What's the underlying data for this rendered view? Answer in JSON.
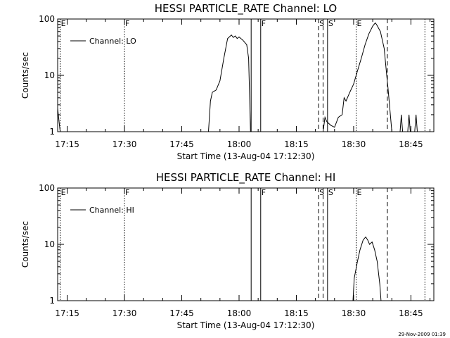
{
  "footer": {
    "timestamp": "29-Nov-2009 01:39"
  },
  "chart_data": [
    {
      "type": "line",
      "title": "HESSI PARTICLE_RATE Channel: LO",
      "xlabel": "Start Time (13-Aug-04 17:12:30)",
      "ylabel": "Counts/sec",
      "yscale": "log",
      "ylim": [
        1,
        100
      ],
      "xlim": [
        "17:12:30",
        "18:51:00"
      ],
      "x_ticks": [
        "17:15",
        "17:30",
        "17:45",
        "18:00",
        "18:15",
        "18:30",
        "18:45"
      ],
      "y_ticks": [
        "1",
        "10",
        "100"
      ],
      "legend": {
        "position": "top-left",
        "entries": [
          "Channel: LO"
        ]
      },
      "series": [
        {
          "name": "Channel: LO",
          "points": [
            [
              "17:12:30",
              2.6
            ],
            [
              "17:12:50",
              1.6
            ],
            [
              "17:13:10",
              1.0
            ],
            [
              "17:52:00",
              1.0
            ],
            [
              "17:52:30",
              3.5
            ],
            [
              "17:53:00",
              5.0
            ],
            [
              "17:54:00",
              5.5
            ],
            [
              "17:55:00",
              8.0
            ],
            [
              "17:56:00",
              20.0
            ],
            [
              "17:57:00",
              45.0
            ],
            [
              "17:58:00",
              52.0
            ],
            [
              "17:58:30",
              47.0
            ],
            [
              "17:59:00",
              50.0
            ],
            [
              "17:59:30",
              45.0
            ],
            [
              "18:00:00",
              48.0
            ],
            [
              "18:01:00",
              42.0
            ],
            [
              "18:02:00",
              35.0
            ],
            [
              "18:02:30",
              20.0
            ],
            [
              "18:03:00",
              1.0
            ],
            [
              "18:22:00",
              1.0
            ],
            [
              "18:22:30",
              1.8
            ],
            [
              "18:23:00",
              1.5
            ],
            [
              "18:24:00",
              1.3
            ],
            [
              "18:25:00",
              1.2
            ],
            [
              "18:26:00",
              1.8
            ],
            [
              "18:27:00",
              2.0
            ],
            [
              "18:27:30",
              4.0
            ],
            [
              "18:28:00",
              3.5
            ],
            [
              "18:29:00",
              5.0
            ],
            [
              "18:30:00",
              7.0
            ],
            [
              "18:31:00",
              12.0
            ],
            [
              "18:32:00",
              20.0
            ],
            [
              "18:33:00",
              35.0
            ],
            [
              "18:34:00",
              55.0
            ],
            [
              "18:35:00",
              75.0
            ],
            [
              "18:35:40",
              85.0
            ],
            [
              "18:36:00",
              80.0
            ],
            [
              "18:37:00",
              60.0
            ],
            [
              "18:38:00",
              30.0
            ],
            [
              "18:38:40",
              10.0
            ],
            [
              "18:39:00",
              6.0
            ],
            [
              "18:40:00",
              1.0
            ],
            [
              "18:42:10",
              1.0
            ],
            [
              "18:42:30",
              2.0
            ],
            [
              "18:42:50",
              1.0
            ],
            [
              "18:44:10",
              1.0
            ],
            [
              "18:44:30",
              2.0
            ],
            [
              "18:44:50",
              1.0
            ],
            [
              "18:46:00",
              1.0
            ],
            [
              "18:46:20",
              2.0
            ],
            [
              "18:46:40",
              1.0
            ]
          ]
        }
      ],
      "markers": [
        {
          "time": "17:13:10",
          "style": "dotted",
          "label": "E"
        },
        {
          "time": "17:30:00",
          "style": "dotted",
          "label": "F"
        },
        {
          "time": "18:03:10",
          "style": "solid",
          "label": ""
        },
        {
          "time": "18:05:40",
          "style": "solid",
          "label": "F"
        },
        {
          "time": "18:20:50",
          "style": "dashed",
          "label": "S"
        },
        {
          "time": "18:22:00",
          "style": "dashed",
          "label": ""
        },
        {
          "time": "18:23:10",
          "style": "solid",
          "label": "S"
        },
        {
          "time": "18:30:40",
          "style": "dotted",
          "label": "E"
        },
        {
          "time": "18:38:50",
          "style": "dashed",
          "label": ""
        },
        {
          "time": "18:48:40",
          "style": "dotted",
          "label": ""
        }
      ]
    },
    {
      "type": "line",
      "title": "HESSI PARTICLE_RATE Channel: HI",
      "xlabel": "Start Time (13-Aug-04 17:12:30)",
      "ylabel": "Counts/sec",
      "yscale": "log",
      "ylim": [
        1,
        100
      ],
      "xlim": [
        "17:12:30",
        "18:51:00"
      ],
      "x_ticks": [
        "17:15",
        "17:30",
        "17:45",
        "18:00",
        "18:15",
        "18:30",
        "18:45"
      ],
      "y_ticks": [
        "1",
        "10",
        "100"
      ],
      "legend": {
        "position": "top-left",
        "entries": [
          "Channel: HI"
        ]
      },
      "series": [
        {
          "name": "Channel: HI",
          "points": [
            [
              "18:29:50",
              1.0
            ],
            [
              "18:30:10",
              2.5
            ],
            [
              "18:31:00",
              5.0
            ],
            [
              "18:31:40",
              8.0
            ],
            [
              "18:32:30",
              12.0
            ],
            [
              "18:33:10",
              13.5
            ],
            [
              "18:33:40",
              12.0
            ],
            [
              "18:34:10",
              10.0
            ],
            [
              "18:34:50",
              11.0
            ],
            [
              "18:35:30",
              8.0
            ],
            [
              "18:36:10",
              5.0
            ],
            [
              "18:36:50",
              2.0
            ],
            [
              "18:37:10",
              1.0
            ]
          ]
        }
      ],
      "markers": [
        {
          "time": "17:13:10",
          "style": "dotted",
          "label": "E"
        },
        {
          "time": "17:30:00",
          "style": "dotted",
          "label": "F"
        },
        {
          "time": "18:03:10",
          "style": "solid",
          "label": ""
        },
        {
          "time": "18:05:40",
          "style": "solid",
          "label": "F"
        },
        {
          "time": "18:20:50",
          "style": "dashed",
          "label": "S"
        },
        {
          "time": "18:22:00",
          "style": "dashed",
          "label": ""
        },
        {
          "time": "18:23:10",
          "style": "solid",
          "label": "S"
        },
        {
          "time": "18:30:40",
          "style": "dotted",
          "label": "E"
        },
        {
          "time": "18:38:50",
          "style": "dashed",
          "label": ""
        },
        {
          "time": "18:48:40",
          "style": "dotted",
          "label": ""
        }
      ]
    }
  ]
}
